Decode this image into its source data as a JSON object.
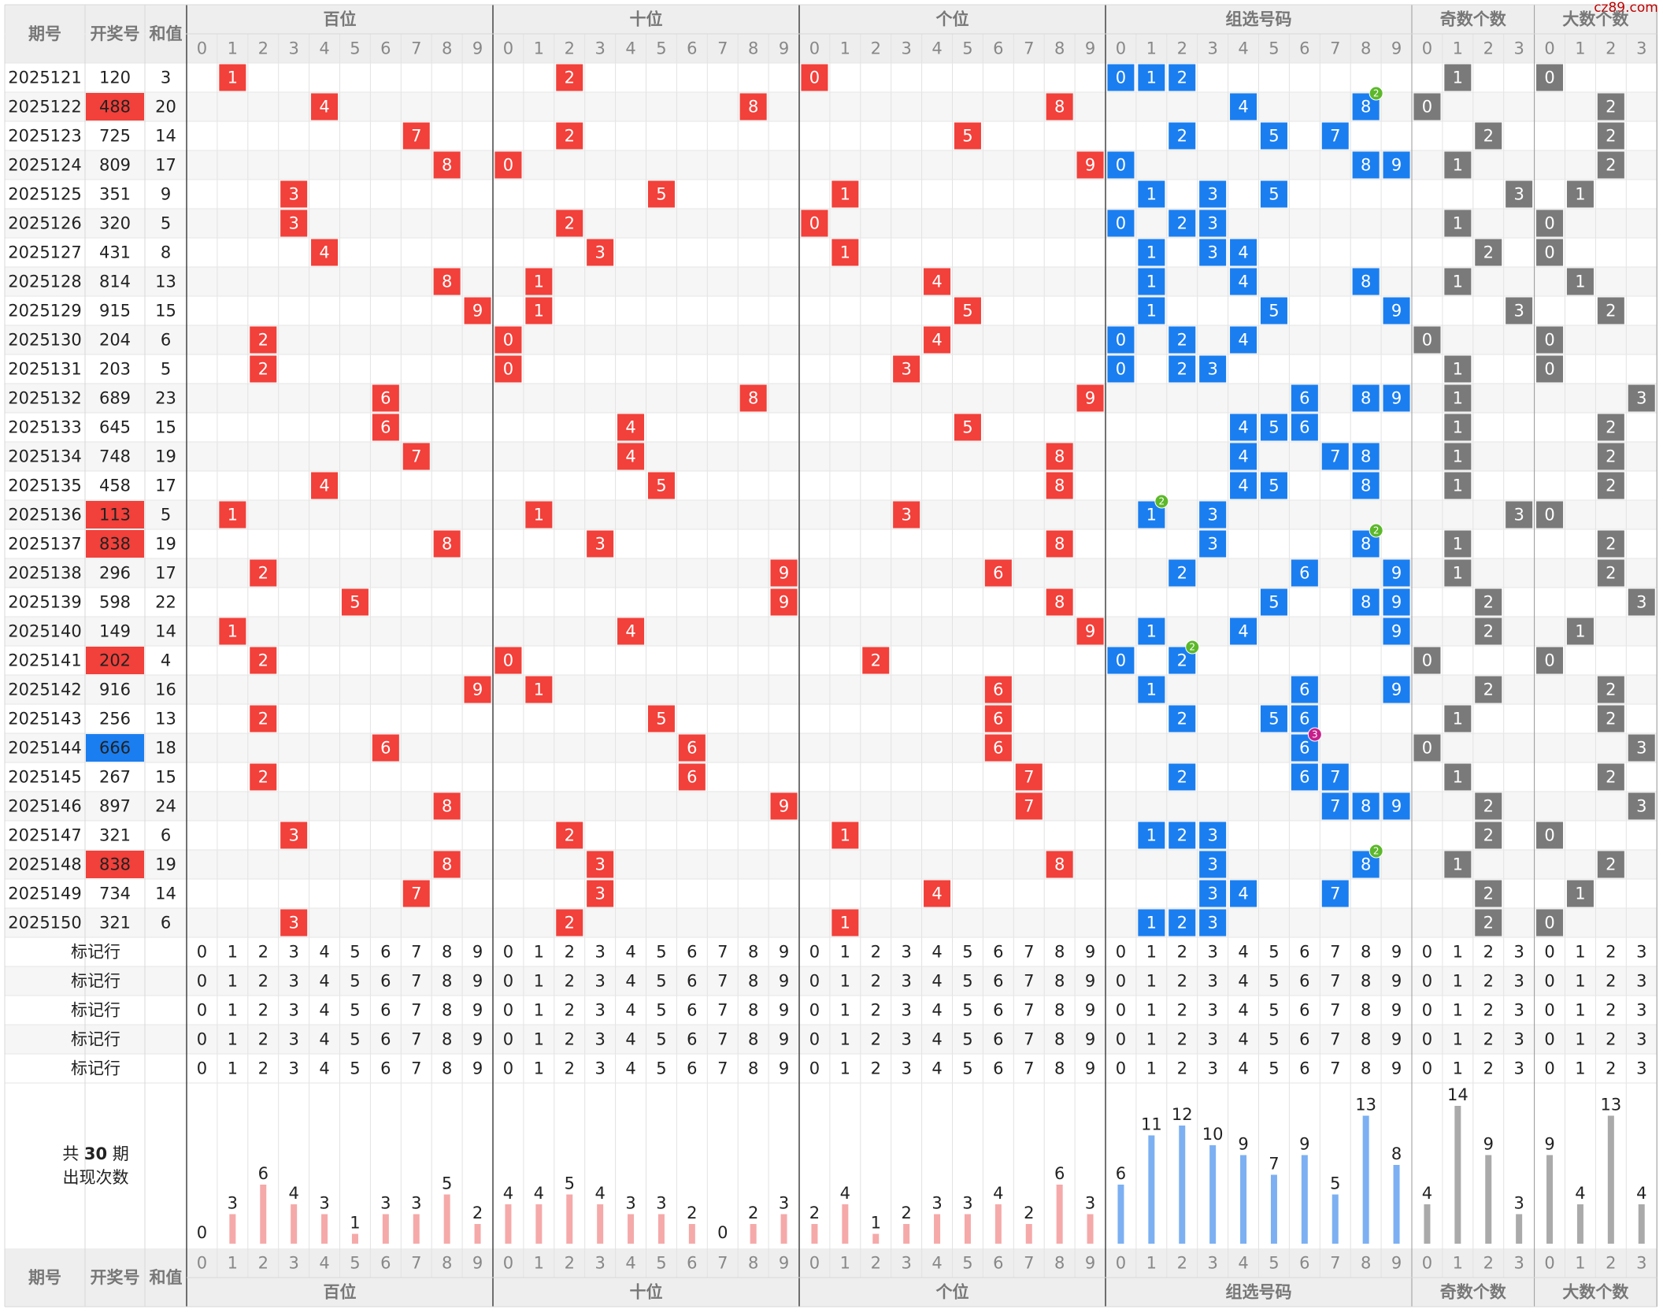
{
  "watermark": "cz89.com",
  "labels": {
    "issue": "期号",
    "number": "开奖号",
    "sum": "和值",
    "marker": "标记行"
  },
  "summary": {
    "prefix": "共",
    "periods": 30,
    "suffix": "期",
    "caption": "出现次数"
  },
  "sections": [
    {
      "name": "百位",
      "digits": [
        0,
        1,
        2,
        3,
        4,
        5,
        6,
        7,
        8,
        9
      ],
      "counts": [
        0,
        3,
        6,
        4,
        3,
        1,
        3,
        3,
        5,
        2
      ]
    },
    {
      "name": "十位",
      "digits": [
        0,
        1,
        2,
        3,
        4,
        5,
        6,
        7,
        8,
        9
      ],
      "counts": [
        4,
        4,
        5,
        4,
        3,
        3,
        2,
        0,
        2,
        3
      ]
    },
    {
      "name": "个位",
      "digits": [
        0,
        1,
        2,
        3,
        4,
        5,
        6,
        7,
        8,
        9
      ],
      "counts": [
        2,
        4,
        1,
        2,
        3,
        3,
        4,
        2,
        6,
        3
      ]
    },
    {
      "name": "组选号码",
      "digits": [
        0,
        1,
        2,
        3,
        4,
        5,
        6,
        7,
        8,
        9
      ],
      "counts": [
        6,
        11,
        12,
        10,
        9,
        7,
        9,
        5,
        13,
        8
      ]
    },
    {
      "name": "奇数个数",
      "digits": [
        0,
        1,
        2,
        3
      ],
      "counts": [
        4,
        14,
        9,
        3
      ]
    },
    {
      "name": "大数个数",
      "digits": [
        0,
        1,
        2,
        3
      ],
      "counts": [
        9,
        4,
        13,
        4
      ]
    }
  ],
  "rows": [
    {
      "issue": "2025121",
      "number": "120",
      "sum": 3,
      "hundreds": 1,
      "tens": 2,
      "ones": 0,
      "group": [
        0,
        1,
        2
      ],
      "odd": 1,
      "big": 0
    },
    {
      "issue": "2025122",
      "number": "488",
      "sum": 20,
      "hundreds": 4,
      "tens": 8,
      "ones": 8,
      "group": [
        4,
        8
      ],
      "repeat": {
        "digit": 8,
        "count": 2
      },
      "odd": 0,
      "big": 2
    },
    {
      "issue": "2025123",
      "number": "725",
      "sum": 14,
      "hundreds": 7,
      "tens": 2,
      "ones": 5,
      "group": [
        2,
        5,
        7
      ],
      "odd": 2,
      "big": 2
    },
    {
      "issue": "2025124",
      "number": "809",
      "sum": 17,
      "hundreds": 8,
      "tens": 0,
      "ones": 9,
      "group": [
        0,
        8,
        9
      ],
      "odd": 1,
      "big": 2
    },
    {
      "issue": "2025125",
      "number": "351",
      "sum": 9,
      "hundreds": 3,
      "tens": 5,
      "ones": 1,
      "group": [
        1,
        3,
        5
      ],
      "odd": 3,
      "big": 1
    },
    {
      "issue": "2025126",
      "number": "320",
      "sum": 5,
      "hundreds": 3,
      "tens": 2,
      "ones": 0,
      "group": [
        0,
        2,
        3
      ],
      "odd": 1,
      "big": 0
    },
    {
      "issue": "2025127",
      "number": "431",
      "sum": 8,
      "hundreds": 4,
      "tens": 3,
      "ones": 1,
      "group": [
        1,
        3,
        4
      ],
      "odd": 2,
      "big": 0
    },
    {
      "issue": "2025128",
      "number": "814",
      "sum": 13,
      "hundreds": 8,
      "tens": 1,
      "ones": 4,
      "group": [
        1,
        4,
        8
      ],
      "odd": 1,
      "big": 1
    },
    {
      "issue": "2025129",
      "number": "915",
      "sum": 15,
      "hundreds": 9,
      "tens": 1,
      "ones": 5,
      "group": [
        1,
        5,
        9
      ],
      "odd": 3,
      "big": 2
    },
    {
      "issue": "2025130",
      "number": "204",
      "sum": 6,
      "hundreds": 2,
      "tens": 0,
      "ones": 4,
      "group": [
        0,
        2,
        4
      ],
      "odd": 0,
      "big": 0
    },
    {
      "issue": "2025131",
      "number": "203",
      "sum": 5,
      "hundreds": 2,
      "tens": 0,
      "ones": 3,
      "group": [
        0,
        2,
        3
      ],
      "odd": 1,
      "big": 0
    },
    {
      "issue": "2025132",
      "number": "689",
      "sum": 23,
      "hundreds": 6,
      "tens": 8,
      "ones": 9,
      "group": [
        6,
        8,
        9
      ],
      "odd": 1,
      "big": 3
    },
    {
      "issue": "2025133",
      "number": "645",
      "sum": 15,
      "hundreds": 6,
      "tens": 4,
      "ones": 5,
      "group": [
        4,
        5,
        6
      ],
      "odd": 1,
      "big": 2
    },
    {
      "issue": "2025134",
      "number": "748",
      "sum": 19,
      "hundreds": 7,
      "tens": 4,
      "ones": 8,
      "group": [
        4,
        7,
        8
      ],
      "odd": 1,
      "big": 2
    },
    {
      "issue": "2025135",
      "number": "458",
      "sum": 17,
      "hundreds": 4,
      "tens": 5,
      "ones": 8,
      "group": [
        4,
        5,
        8
      ],
      "odd": 1,
      "big": 2
    },
    {
      "issue": "2025136",
      "number": "113",
      "sum": 5,
      "hundreds": 1,
      "tens": 1,
      "ones": 3,
      "group": [
        1,
        3
      ],
      "repeat": {
        "digit": 1,
        "count": 2
      },
      "odd": 3,
      "big": 0
    },
    {
      "issue": "2025137",
      "number": "838",
      "sum": 19,
      "hundreds": 8,
      "tens": 3,
      "ones": 8,
      "group": [
        3,
        8
      ],
      "repeat": {
        "digit": 8,
        "count": 2
      },
      "odd": 1,
      "big": 2
    },
    {
      "issue": "2025138",
      "number": "296",
      "sum": 17,
      "hundreds": 2,
      "tens": 9,
      "ones": 6,
      "group": [
        2,
        6,
        9
      ],
      "odd": 1,
      "big": 2
    },
    {
      "issue": "2025139",
      "number": "598",
      "sum": 22,
      "hundreds": 5,
      "tens": 9,
      "ones": 8,
      "group": [
        5,
        8,
        9
      ],
      "odd": 2,
      "big": 3
    },
    {
      "issue": "2025140",
      "number": "149",
      "sum": 14,
      "hundreds": 1,
      "tens": 4,
      "ones": 9,
      "group": [
        1,
        4,
        9
      ],
      "odd": 2,
      "big": 1
    },
    {
      "issue": "2025141",
      "number": "202",
      "sum": 4,
      "hundreds": 2,
      "tens": 0,
      "ones": 2,
      "group": [
        0,
        2
      ],
      "repeat": {
        "digit": 2,
        "count": 2
      },
      "odd": 0,
      "big": 0
    },
    {
      "issue": "2025142",
      "number": "916",
      "sum": 16,
      "hundreds": 9,
      "tens": 1,
      "ones": 6,
      "group": [
        1,
        6,
        9
      ],
      "odd": 2,
      "big": 2
    },
    {
      "issue": "2025143",
      "number": "256",
      "sum": 13,
      "hundreds": 2,
      "tens": 5,
      "ones": 6,
      "group": [
        2,
        5,
        6
      ],
      "odd": 1,
      "big": 2
    },
    {
      "issue": "2025144",
      "number": "666",
      "sum": 18,
      "hundreds": 6,
      "tens": 6,
      "ones": 6,
      "group": [
        6
      ],
      "repeat": {
        "digit": 6,
        "count": 3
      },
      "odd": 0,
      "big": 3
    },
    {
      "issue": "2025145",
      "number": "267",
      "sum": 15,
      "hundreds": 2,
      "tens": 6,
      "ones": 7,
      "group": [
        2,
        6,
        7
      ],
      "odd": 1,
      "big": 2
    },
    {
      "issue": "2025146",
      "number": "897",
      "sum": 24,
      "hundreds": 8,
      "tens": 9,
      "ones": 7,
      "group": [
        7,
        8,
        9
      ],
      "odd": 2,
      "big": 3
    },
    {
      "issue": "2025147",
      "number": "321",
      "sum": 6,
      "hundreds": 3,
      "tens": 2,
      "ones": 1,
      "group": [
        1,
        2,
        3
      ],
      "odd": 2,
      "big": 0
    },
    {
      "issue": "2025148",
      "number": "838",
      "sum": 19,
      "hundreds": 8,
      "tens": 3,
      "ones": 8,
      "group": [
        3,
        8
      ],
      "repeat": {
        "digit": 8,
        "count": 2
      },
      "odd": 1,
      "big": 2
    },
    {
      "issue": "2025149",
      "number": "734",
      "sum": 14,
      "hundreds": 7,
      "tens": 3,
      "ones": 4,
      "group": [
        3,
        4,
        7
      ],
      "odd": 2,
      "big": 1
    },
    {
      "issue": "2025150",
      "number": "321",
      "sum": 6,
      "hundreds": 3,
      "tens": 2,
      "ones": 1,
      "group": [
        1,
        2,
        3
      ],
      "odd": 2,
      "big": 0
    }
  ]
}
